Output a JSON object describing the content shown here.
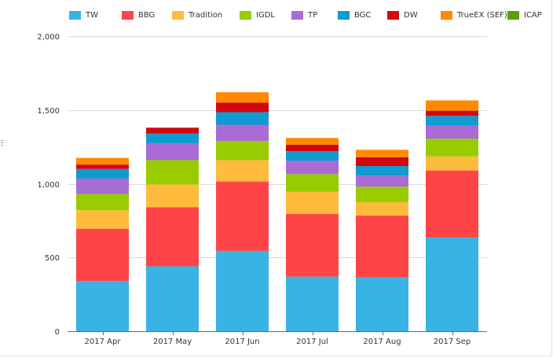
{
  "chart_data": {
    "type": "bar",
    "stacked": true,
    "categories": [
      "2017 Apr",
      "2017 May",
      "2017 Jun",
      "2017 Jul",
      "2017 Aug",
      "2017 Sep"
    ],
    "series": [
      {
        "name": "TW",
        "color": "#38b3e4",
        "values": [
          340,
          440,
          545,
          370,
          365,
          635
        ]
      },
      {
        "name": "BBG",
        "color": "#ff4447",
        "values": [
          355,
          400,
          470,
          425,
          420,
          455
        ]
      },
      {
        "name": "Tradition",
        "color": "#ffbb3e",
        "values": [
          125,
          155,
          145,
          150,
          90,
          95
        ]
      },
      {
        "name": "IGDL",
        "color": "#98cc00",
        "values": [
          110,
          165,
          130,
          120,
          105,
          120
        ]
      },
      {
        "name": "TP",
        "color": "#a86cd4",
        "values": [
          105,
          115,
          110,
          90,
          75,
          90
        ]
      },
      {
        "name": "BGC",
        "color": "#0f9ad2",
        "values": [
          65,
          65,
          85,
          65,
          65,
          65
        ]
      },
      {
        "name": "DW",
        "color": "#d2080f",
        "values": [
          30,
          40,
          65,
          45,
          60,
          35
        ]
      },
      {
        "name": "TrueEX (SEF)",
        "color": "#ff8900",
        "values": [
          45,
          0,
          70,
          45,
          50,
          70
        ]
      },
      {
        "name": "ICAP",
        "color": "#5d9d06",
        "values": [
          0,
          0,
          0,
          0,
          0,
          0
        ]
      }
    ],
    "yticks": [
      0,
      500,
      1000,
      1500,
      2000
    ],
    "ytick_labels": [
      "0",
      "500",
      "1,000",
      "1,500",
      "2,000"
    ],
    "ylim": [
      0,
      2000
    ],
    "grid": true,
    "legend_position": "top",
    "title": "",
    "xlabel": "",
    "ylabel": ""
  }
}
